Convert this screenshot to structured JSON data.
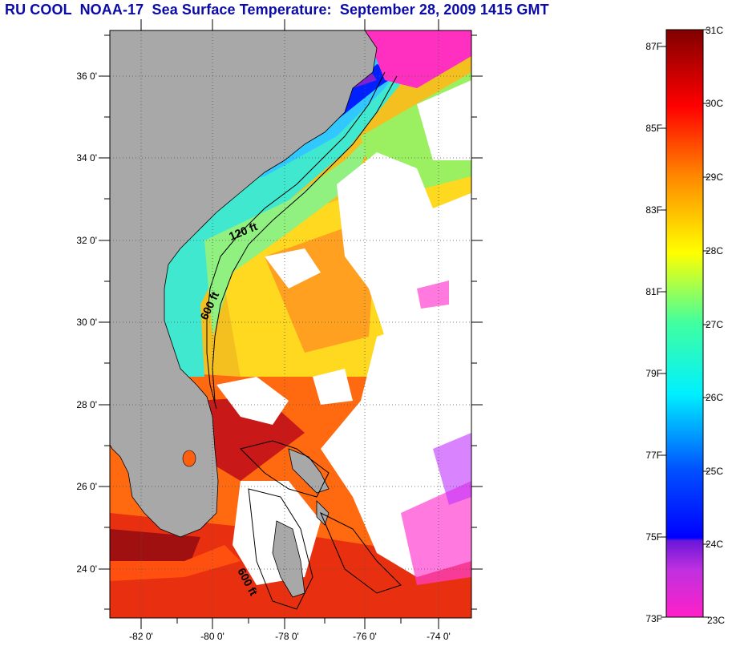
{
  "title": "RU COOL  NOAA-17  Sea Surface Temperature:  September 28, 2009 1415 GMT",
  "map": {
    "lat_ticks": [
      "36 0'",
      "34 0'",
      "32 0'",
      "30 0'",
      "28 0'",
      "26 0'",
      "24 0'"
    ],
    "lon_ticks": [
      "-82 0'",
      "-80 0'",
      "-78 0'",
      "-76 0'",
      "-74 0'"
    ],
    "contour_labels": [
      "120 ft",
      "600 ft",
      "600 ft"
    ],
    "colors": {
      "land": "#a8a8a8",
      "cloud": "#ffffff",
      "grid": "#555555"
    }
  },
  "colorbar": {
    "fahrenheit_labels": [
      "87F",
      "85F",
      "83F",
      "81F",
      "79F",
      "77F",
      "75F",
      "73F"
    ],
    "celsius_labels": [
      "31C",
      "30C",
      "29C",
      "28C",
      "27C",
      "26C",
      "25C",
      "24C",
      "23C"
    ]
  }
}
